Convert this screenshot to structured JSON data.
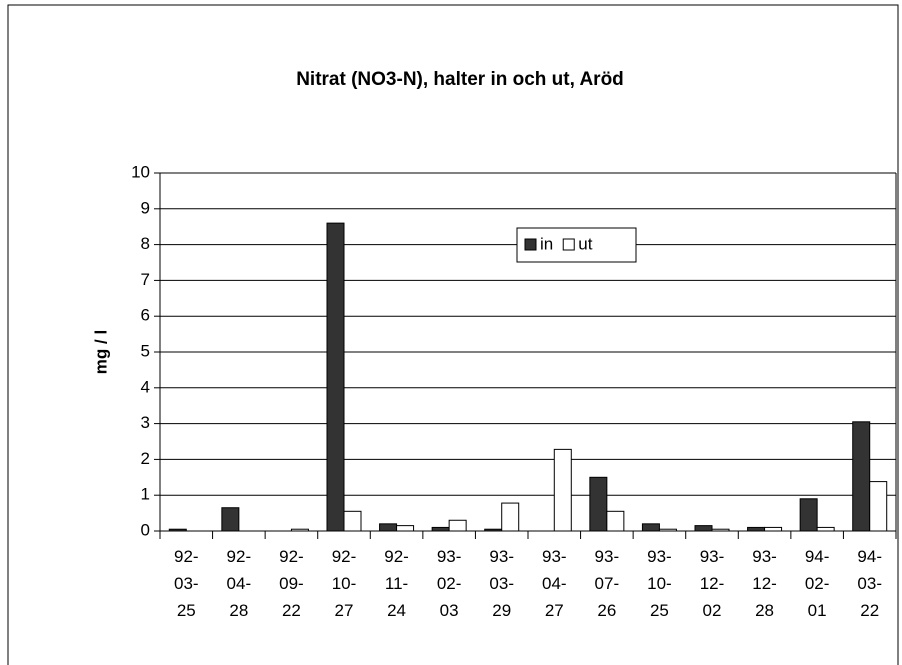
{
  "chart_data": {
    "type": "bar",
    "title": "Nitrat (NO3-N), halter in och ut, Aröd",
    "ylabel": "mg / l",
    "categories": [
      "92-03-25",
      "92-04-28",
      "92-09-22",
      "92-10-27",
      "92-11-24",
      "93-02-03",
      "93-03-29",
      "93-04-27",
      "93-07-26",
      "93-10-25",
      "93-12-02",
      "93-12-28",
      "94-02-01",
      "94-03-22"
    ],
    "series": [
      {
        "name": "in",
        "color": "#333333",
        "values": [
          0.05,
          0.65,
          0,
          8.6,
          0.2,
          0.1,
          0.05,
          0,
          1.5,
          0.2,
          0.15,
          0.1,
          0.9,
          3.05
        ]
      },
      {
        "name": "ut",
        "color": "#ffffff",
        "values": [
          0,
          0,
          0.05,
          0.55,
          0.15,
          0.3,
          0.78,
          2.28,
          0.55,
          0.05,
          0.05,
          0.1,
          0.1,
          1.38
        ]
      }
    ],
    "ylim": [
      0,
      10
    ],
    "yticks": [
      0,
      1,
      2,
      3,
      4,
      5,
      6,
      7,
      8,
      9,
      10
    ],
    "grid": true
  }
}
